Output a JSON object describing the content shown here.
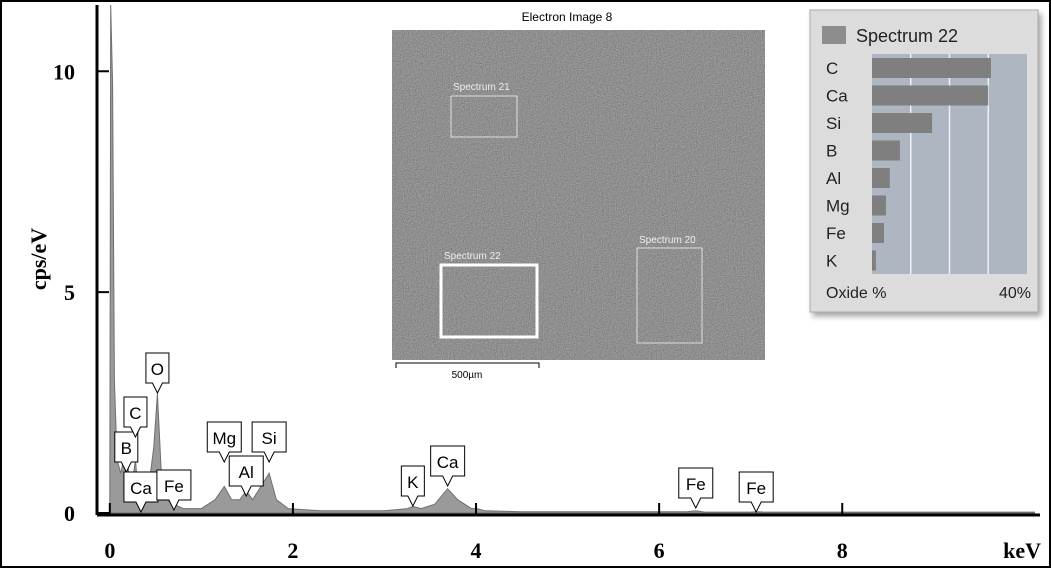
{
  "chart_data": [
    {
      "type": "area",
      "xlabel": "keV",
      "ylabel": "cps/eV",
      "x": [
        0,
        0.01,
        0.03,
        0.05,
        0.08,
        0.12,
        0.18,
        0.22,
        0.26,
        0.28,
        0.31,
        0.36,
        0.42,
        0.48,
        0.52,
        0.56,
        0.62,
        0.7,
        0.8,
        1.0,
        1.15,
        1.25,
        1.33,
        1.42,
        1.49,
        1.56,
        1.65,
        1.74,
        1.82,
        1.95,
        2.3,
        3.0,
        3.25,
        3.31,
        3.4,
        3.55,
        3.69,
        3.8,
        3.95,
        4.01,
        4.1,
        4.5,
        6.3,
        6.4,
        6.5,
        7.0,
        7.06,
        7.15,
        10.1
      ],
      "values": [
        0.1,
        11.5,
        9.7,
        3,
        1.2,
        0.9,
        1.5,
        0.6,
        0.9,
        1.2,
        0.4,
        0.3,
        0.5,
        1.5,
        2.7,
        1.0,
        0.3,
        0.2,
        0.1,
        0.1,
        0.3,
        0.6,
        0.3,
        0.3,
        0.5,
        0.3,
        0.6,
        0.9,
        0.3,
        0.1,
        0.05,
        0.05,
        0.1,
        0.15,
        0.1,
        0.2,
        0.55,
        0.3,
        0.1,
        0.1,
        0.05,
        0.03,
        0.03,
        0.05,
        0.02,
        0.02,
        0.03,
        0.02,
        0.02
      ],
      "color": "#9a9a9a",
      "xlim": [
        -0.14,
        10.16
      ],
      "ylim": [
        0,
        11.5
      ],
      "xticks": [
        0,
        2,
        4,
        6,
        8
      ],
      "yticks": [
        0,
        5,
        10
      ],
      "peaks": [
        {
          "label": "B",
          "x": 0.18
        },
        {
          "label": "C",
          "x": 0.28
        },
        {
          "label": "O",
          "x": 0.52
        },
        {
          "label": "Ca",
          "x": 0.34
        },
        {
          "label": "Fe",
          "x": 0.7
        },
        {
          "label": "Mg",
          "x": 1.25
        },
        {
          "label": "Al",
          "x": 1.49
        },
        {
          "label": "Si",
          "x": 1.74
        },
        {
          "label": "K",
          "x": 3.31
        },
        {
          "label": "Ca",
          "x": 3.69
        },
        {
          "label": "Fe",
          "x": 6.4
        },
        {
          "label": "Fe",
          "x": 7.06
        }
      ]
    },
    {
      "type": "hbar",
      "title": "Spectrum 22",
      "xlabel": "Oxide %",
      "categories": [
        "C",
        "Ca",
        "Si",
        "B",
        "Al",
        "Mg",
        "Fe",
        "K"
      ],
      "values": [
        30.7,
        30,
        15.5,
        7.2,
        4.6,
        3.6,
        3.1,
        1
      ],
      "color": "#7f7f7f",
      "xlim": [
        0,
        40
      ],
      "gridlines": [
        10,
        20,
        30
      ],
      "xticks": [
        {
          "value": 40,
          "label": "40%"
        }
      ]
    }
  ],
  "inset_image": {
    "title": "Electron Image 8",
    "regions": [
      {
        "label": "Spectrum 21"
      },
      {
        "label": "Spectrum 22"
      },
      {
        "label": "Spectrum 20"
      }
    ],
    "scale_label": "500µm"
  }
}
